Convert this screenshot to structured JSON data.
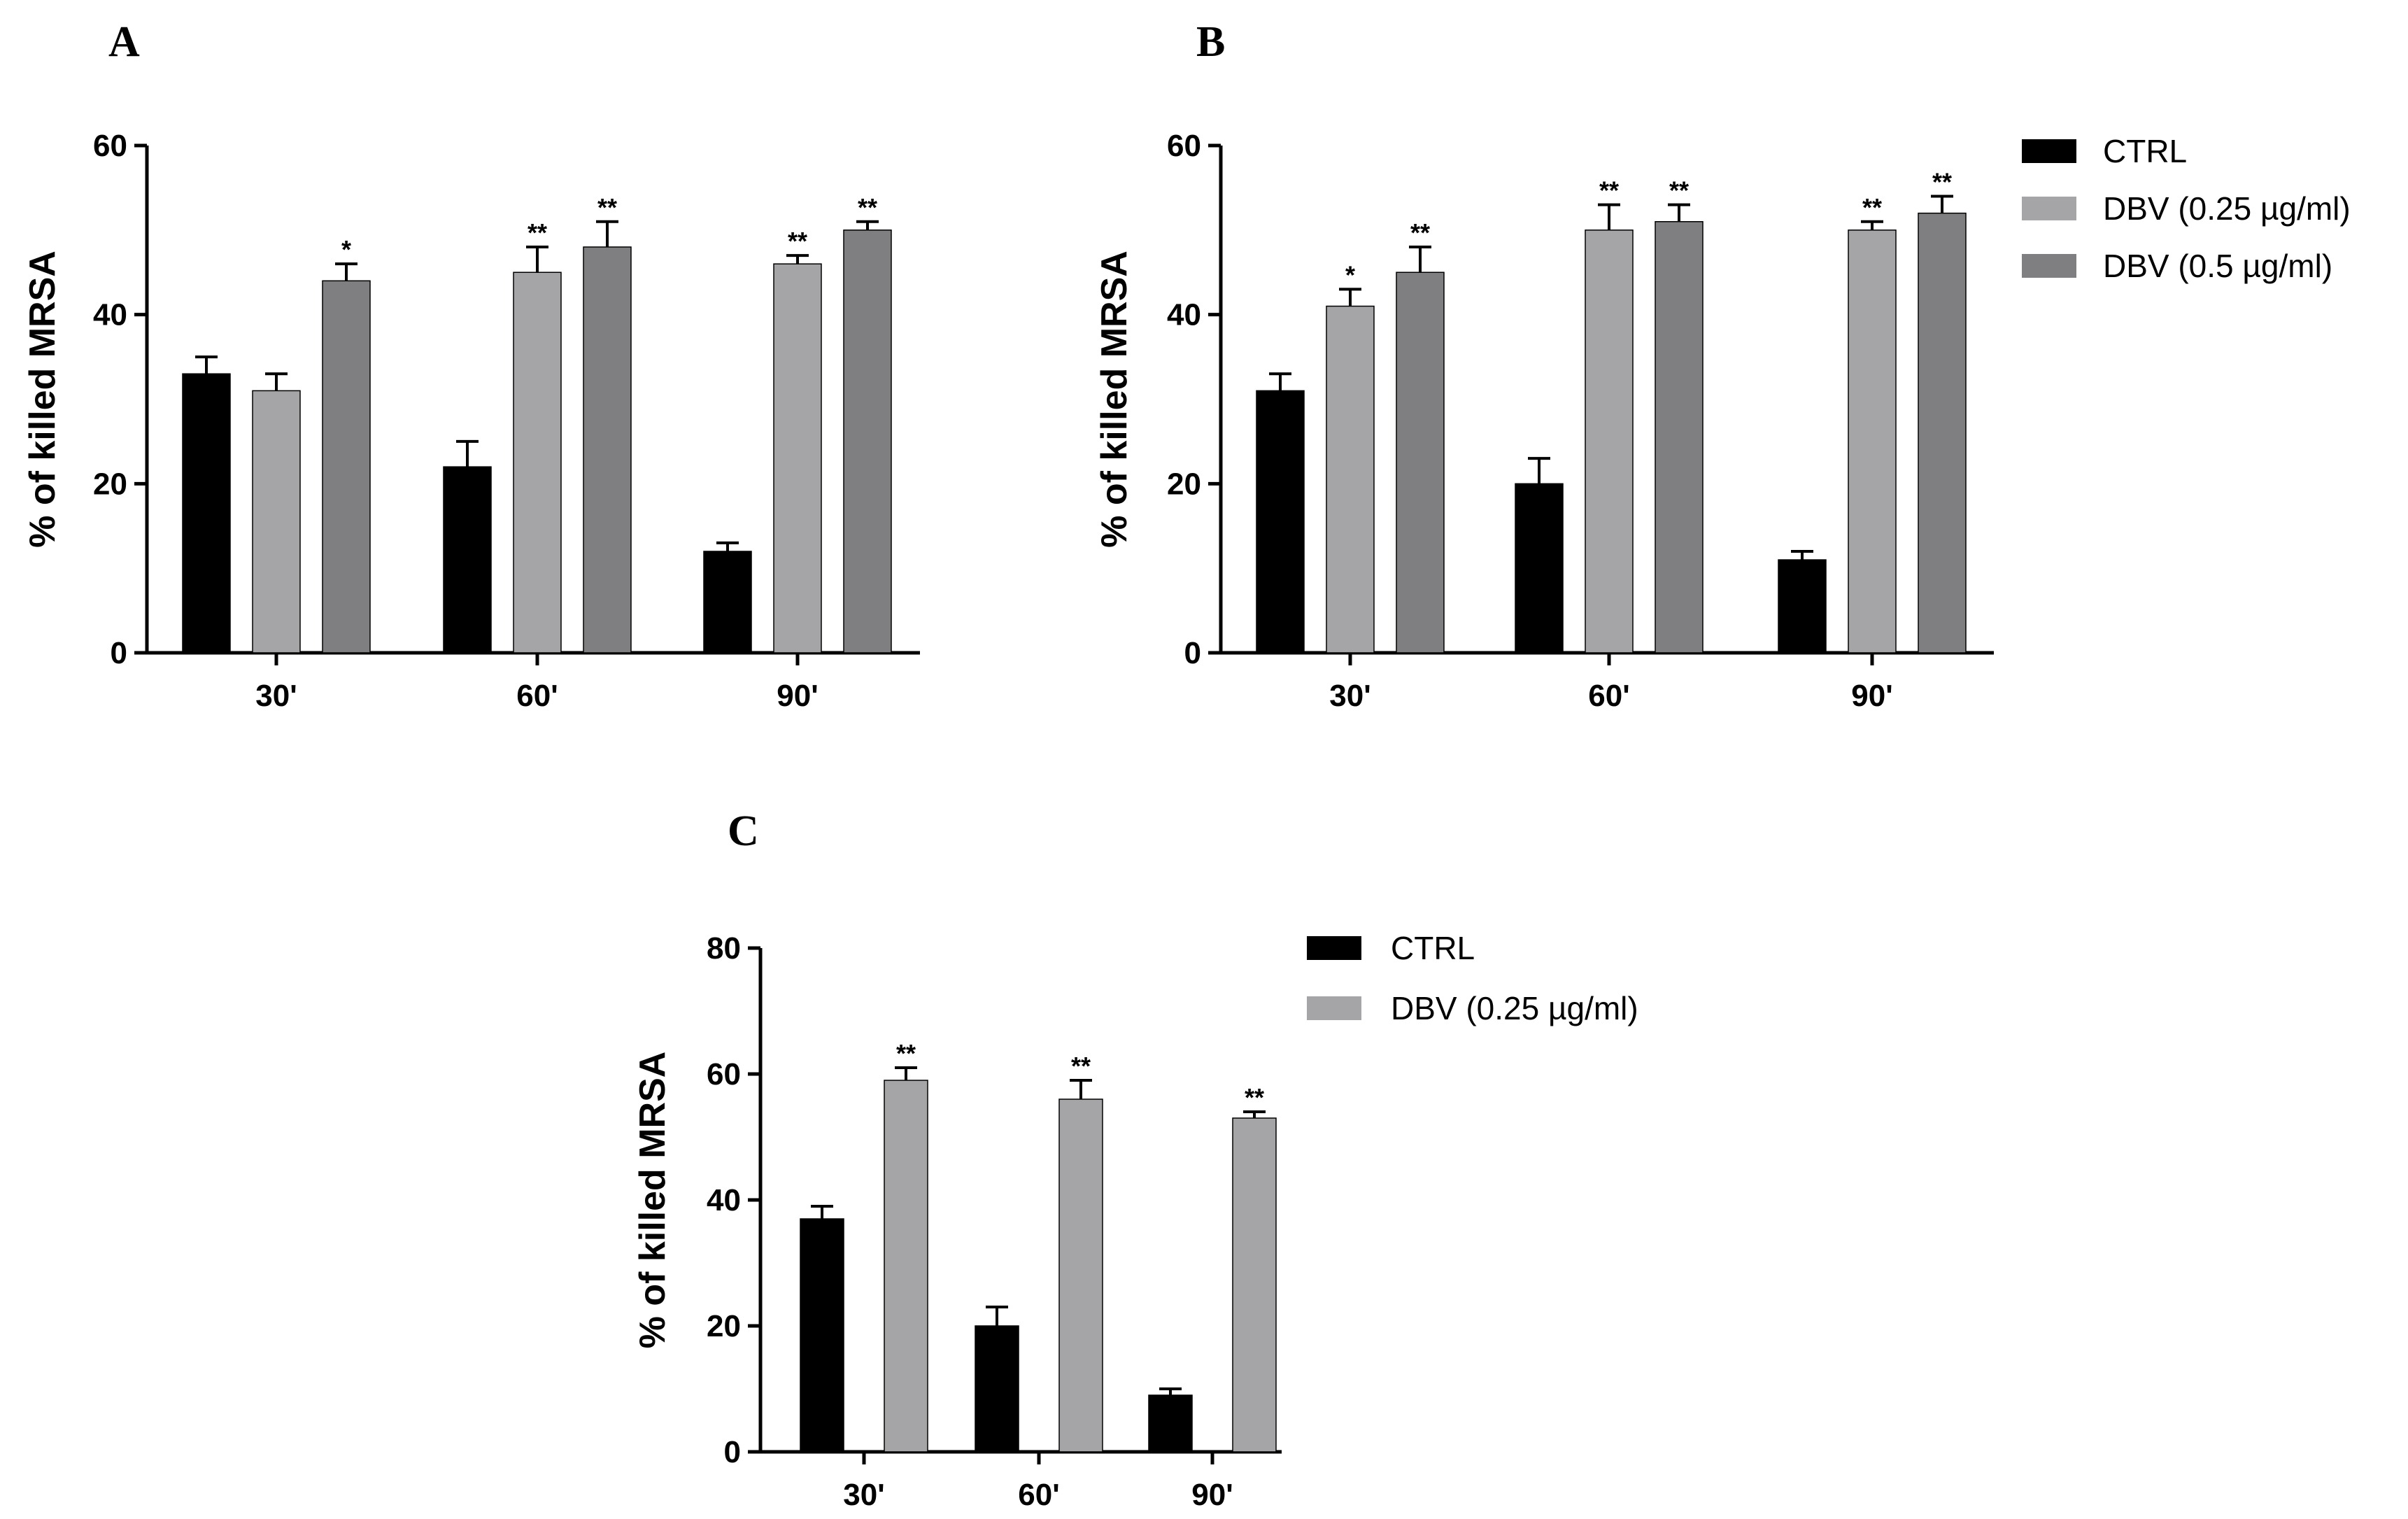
{
  "chart_data": [
    {
      "id": "A",
      "panel_label": "A",
      "type": "bar",
      "ylabel": "% of killed MRSA",
      "ylim": [
        0,
        60
      ],
      "yticks": [
        0,
        20,
        40,
        60
      ],
      "categories": [
        "30'",
        "60'",
        "90'"
      ],
      "series": [
        {
          "name": "CTRL",
          "color": "#000000",
          "values": [
            33,
            22,
            12
          ],
          "errors": [
            2,
            3,
            1
          ],
          "significance": [
            "",
            "",
            ""
          ]
        },
        {
          "name": "DBV (0.25 µg/ml)",
          "color": "#a5a5a7",
          "values": [
            31,
            45,
            46
          ],
          "errors": [
            2,
            3,
            1
          ],
          "significance": [
            "",
            "**",
            "**"
          ]
        },
        {
          "name": "DBV (0.5 µg/ml)",
          "color": "#7f7f81",
          "values": [
            44,
            48,
            50
          ],
          "errors": [
            2,
            3,
            1
          ],
          "significance": [
            "*",
            "**",
            "**"
          ]
        }
      ],
      "legend": false
    },
    {
      "id": "B",
      "panel_label": "B",
      "type": "bar",
      "ylabel": "% of killed MRSA",
      "ylim": [
        0,
        60
      ],
      "yticks": [
        0,
        20,
        40,
        60
      ],
      "categories": [
        "30'",
        "60'",
        "90'"
      ],
      "series": [
        {
          "name": "CTRL",
          "color": "#000000",
          "values": [
            31,
            20,
            11
          ],
          "errors": [
            2,
            3,
            1
          ],
          "significance": [
            "",
            "",
            ""
          ]
        },
        {
          "name": "DBV (0.25 µg/ml)",
          "color": "#a5a5a7",
          "values": [
            41,
            50,
            50
          ],
          "errors": [
            2,
            3,
            1
          ],
          "significance": [
            "*",
            "**",
            "**"
          ]
        },
        {
          "name": "DBV (0.5 µg/ml)",
          "color": "#7f7f81",
          "values": [
            45,
            51,
            52
          ],
          "errors": [
            3,
            2,
            2
          ],
          "significance": [
            "**",
            "**",
            "**"
          ]
        }
      ],
      "legend": true,
      "legend_position": "right"
    },
    {
      "id": "C",
      "panel_label": "C",
      "type": "bar",
      "ylabel": "% of killed MRSA",
      "ylim": [
        0,
        80
      ],
      "yticks": [
        0,
        20,
        40,
        60,
        80
      ],
      "categories": [
        "30'",
        "60'",
        "90'"
      ],
      "series": [
        {
          "name": "CTRL",
          "color": "#000000",
          "values": [
            37,
            20,
            9
          ],
          "errors": [
            2,
            3,
            1
          ],
          "significance": [
            "",
            "",
            ""
          ]
        },
        {
          "name": "DBV (0.25 µg/ml)",
          "color": "#a5a5a7",
          "values": [
            59,
            56,
            53
          ],
          "errors": [
            2,
            3,
            1
          ],
          "significance": [
            "**",
            "**",
            "**"
          ]
        }
      ],
      "legend": true,
      "legend_position": "right"
    }
  ]
}
